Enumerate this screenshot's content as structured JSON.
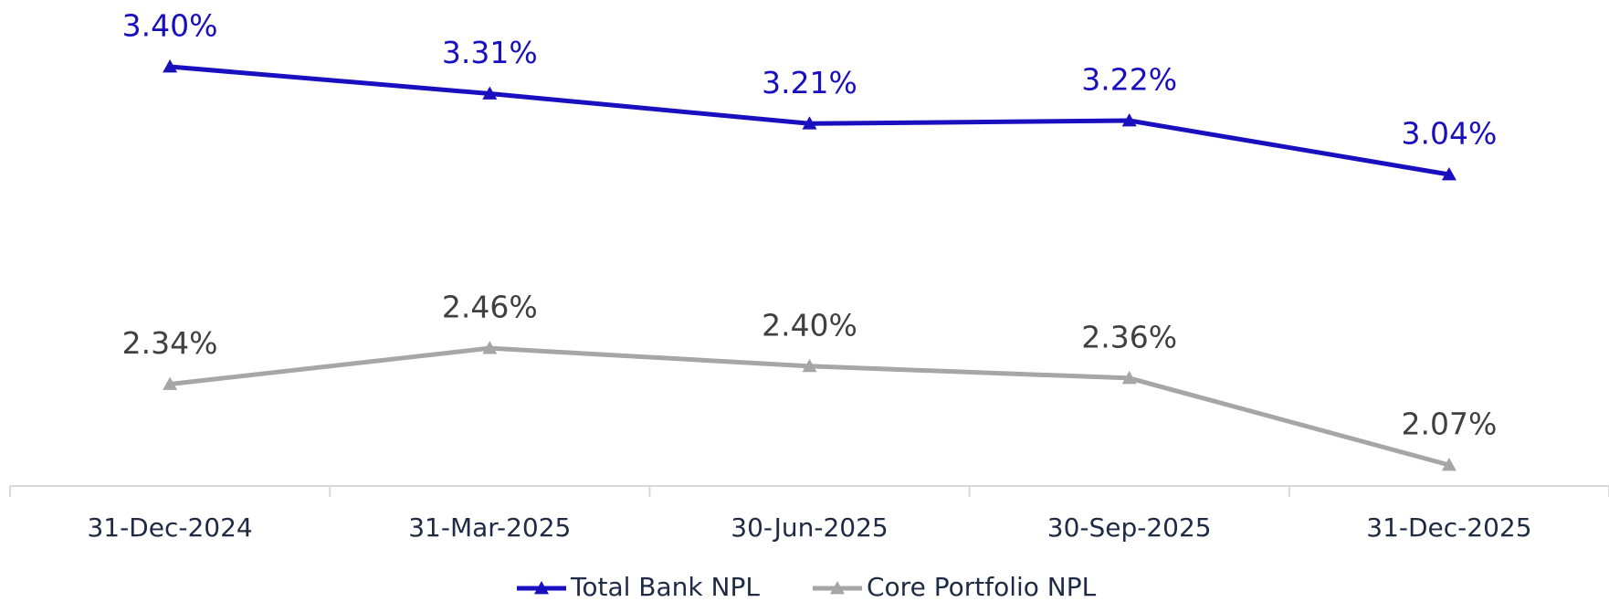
{
  "chart_data": {
    "type": "line",
    "categories": [
      "31-Dec-2024",
      "31-Mar-2025",
      "30-Jun-2025",
      "30-Sep-2025",
      "31-Dec-2025"
    ],
    "series": [
      {
        "name": "Total Bank NPL",
        "color": "#1a0fbf",
        "label_color": "#1a0fbf",
        "values": [
          3.4,
          3.31,
          3.21,
          3.22,
          3.04
        ],
        "value_labels": [
          "3.40%",
          "3.31%",
          "3.21%",
          "3.22%",
          "3.04%"
        ]
      },
      {
        "name": "Core Portfolio NPL",
        "color": "#a6a6a6",
        "label_color": "#404040",
        "values": [
          2.34,
          2.46,
          2.4,
          2.36,
          2.07
        ],
        "value_labels": [
          "2.34%",
          "2.46%",
          "2.40%",
          "2.36%",
          "2.07%"
        ]
      }
    ],
    "legend": "bottom"
  }
}
